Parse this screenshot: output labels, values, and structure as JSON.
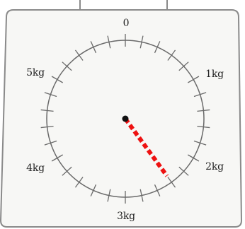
{
  "scale": {
    "unit": "kg",
    "max_kg": 6,
    "reading_kg": 2.4,
    "tick_count": 30,
    "labels": [
      {
        "value_kg": 0,
        "text": "0"
      },
      {
        "value_kg": 1,
        "text": "1kg"
      },
      {
        "value_kg": 2,
        "text": "2kg"
      },
      {
        "value_kg": 3,
        "text": "3kg"
      },
      {
        "value_kg": 4,
        "text": "4kg"
      },
      {
        "value_kg": 5,
        "text": "5kg"
      }
    ]
  },
  "colors": {
    "pointer": "#ee1111",
    "dial": "#6a6a6a",
    "face": "#f7f7f5",
    "frame": "#8a8a8a",
    "hub": "#111111"
  }
}
